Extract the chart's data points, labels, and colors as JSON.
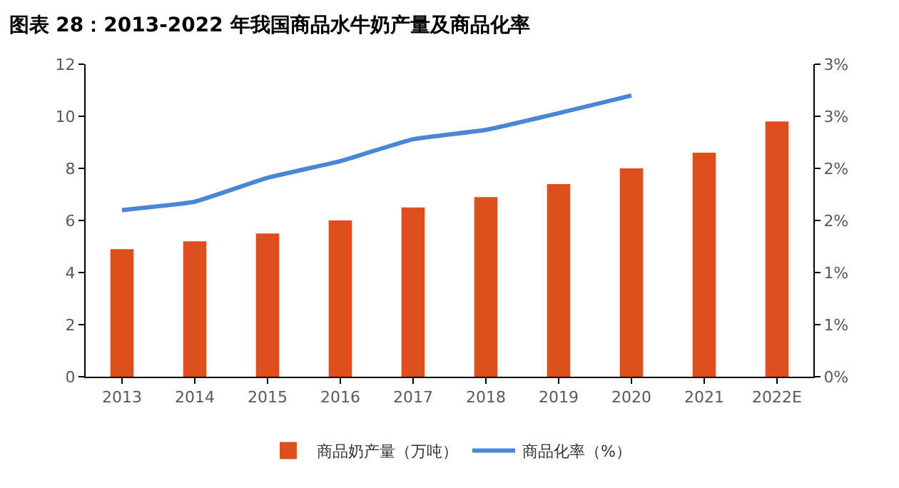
{
  "chart_data": {
    "type": "bar",
    "title": "图表 28：2013-2022 年我国商品水牛奶产量及商品化率",
    "categories": [
      "2013",
      "2014",
      "2015",
      "2016",
      "2017",
      "2018",
      "2019",
      "2020",
      "2021",
      "2022E"
    ],
    "series": [
      {
        "name": "商品奶产量（万吨）",
        "color": "#dd4f1f",
        "values": [
          4.9,
          5.2,
          5.5,
          6.0,
          6.5,
          6.9,
          7.4,
          8.0,
          8.6,
          9.8
        ]
      },
      {
        "name": "商品化率（%）",
        "type": "line",
        "axis": "y2",
        "color": "#4a86d8",
        "values": [
          1.6,
          1.68,
          1.91,
          2.07,
          2.28,
          2.37,
          2.53,
          2.7,
          null,
          null
        ]
      }
    ],
    "ylim": [
      0,
      12
    ],
    "yticks": [
      0,
      2,
      4,
      6,
      8,
      10,
      12
    ],
    "y2lim": [
      0,
      3
    ],
    "y2ticks": [
      {
        "value": 0,
        "label": "0%"
      },
      {
        "value": 0.5,
        "label": "1%"
      },
      {
        "value": 1,
        "label": "1%"
      },
      {
        "value": 1.5,
        "label": "2%"
      },
      {
        "value": 2,
        "label": "2%"
      },
      {
        "value": 2.5,
        "label": "3%"
      },
      {
        "value": 3,
        "label": "3%"
      }
    ],
    "legend": "bottom",
    "grid": false
  }
}
